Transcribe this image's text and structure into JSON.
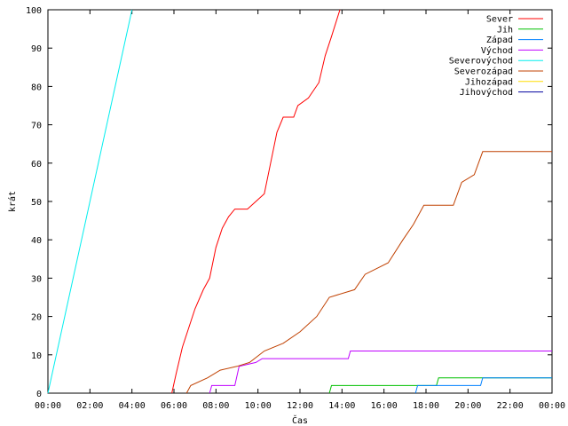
{
  "chart_data": {
    "type": "line",
    "title": "",
    "xlabel": "Čas",
    "ylabel": "krát",
    "xlim": [
      0,
      24
    ],
    "ylim": [
      0,
      100
    ],
    "x_tick_values": [
      0,
      2,
      4,
      6,
      8,
      10,
      12,
      14,
      16,
      18,
      20,
      22,
      24
    ],
    "x_ticks": [
      "00:00",
      "02:00",
      "04:00",
      "06:00",
      "08:00",
      "10:00",
      "12:00",
      "14:00",
      "16:00",
      "18:00",
      "20:00",
      "22:00",
      "00:00"
    ],
    "y_tick_values": [
      0,
      10,
      20,
      30,
      40,
      50,
      60,
      70,
      80,
      90,
      100
    ],
    "y_ticks": [
      "0",
      "10",
      "20",
      "30",
      "40",
      "50",
      "60",
      "70",
      "80",
      "90",
      "100"
    ],
    "grid": false,
    "legend_position": "top-right",
    "series": [
      {
        "name": "Sever",
        "color": "#ff0000",
        "points": [
          [
            5.9,
            0
          ],
          [
            6.1,
            5
          ],
          [
            6.4,
            12
          ],
          [
            6.7,
            17
          ],
          [
            7.0,
            22
          ],
          [
            7.4,
            27
          ],
          [
            7.7,
            30
          ],
          [
            8.0,
            38
          ],
          [
            8.3,
            43
          ],
          [
            8.6,
            46
          ],
          [
            8.9,
            48
          ],
          [
            9.5,
            48
          ],
          [
            9.9,
            50
          ],
          [
            10.3,
            52
          ],
          [
            10.6,
            60
          ],
          [
            10.9,
            68
          ],
          [
            11.2,
            72
          ],
          [
            11.7,
            72
          ],
          [
            11.9,
            75
          ],
          [
            12.4,
            77
          ],
          [
            12.9,
            81
          ],
          [
            13.2,
            88
          ],
          [
            13.5,
            93
          ],
          [
            13.9,
            100
          ]
        ]
      },
      {
        "name": "Jih",
        "color": "#00c000",
        "points": [
          [
            13.4,
            0
          ],
          [
            13.5,
            2
          ],
          [
            18.5,
            2
          ],
          [
            18.6,
            4
          ],
          [
            24,
            4
          ]
        ]
      },
      {
        "name": "Západ",
        "color": "#0080ff",
        "points": [
          [
            17.5,
            0
          ],
          [
            17.6,
            2
          ],
          [
            20.6,
            2
          ],
          [
            20.7,
            4
          ],
          [
            24,
            4
          ]
        ]
      },
      {
        "name": "Východ",
        "color": "#c000ff",
        "points": [
          [
            7.7,
            0
          ],
          [
            7.8,
            2
          ],
          [
            8.9,
            2
          ],
          [
            9.1,
            7
          ],
          [
            9.9,
            8
          ],
          [
            10.2,
            9
          ],
          [
            14.3,
            9
          ],
          [
            14.4,
            11
          ],
          [
            24,
            11
          ]
        ]
      },
      {
        "name": "Severovýchod",
        "color": "#00eeee",
        "points": [
          [
            0.0,
            0
          ],
          [
            4.0,
            100
          ]
        ]
      },
      {
        "name": "Severozápad",
        "color": "#c04000",
        "points": [
          [
            6.6,
            0
          ],
          [
            6.8,
            2
          ],
          [
            7.6,
            4
          ],
          [
            8.2,
            6
          ],
          [
            9.0,
            7
          ],
          [
            9.6,
            8
          ],
          [
            10.3,
            11
          ],
          [
            11.2,
            13
          ],
          [
            12.0,
            16
          ],
          [
            12.8,
            20
          ],
          [
            13.4,
            25
          ],
          [
            14.6,
            27
          ],
          [
            15.1,
            31
          ],
          [
            16.2,
            34
          ],
          [
            16.9,
            40
          ],
          [
            17.4,
            44
          ],
          [
            17.9,
            49
          ],
          [
            19.3,
            49
          ],
          [
            19.7,
            55
          ],
          [
            20.3,
            57
          ],
          [
            20.7,
            63
          ],
          [
            24,
            63
          ]
        ]
      },
      {
        "name": "Jihozápad",
        "color": "#ffdd00",
        "points": []
      },
      {
        "name": "Jihovýchod",
        "color": "#0000a0",
        "points": []
      }
    ]
  }
}
